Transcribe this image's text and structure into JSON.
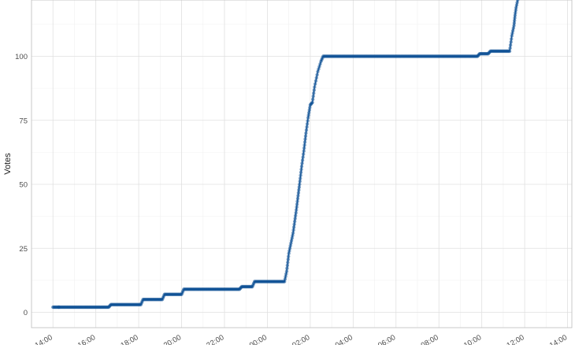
{
  "chart_data": {
    "type": "line",
    "title": "",
    "xlabel": "",
    "ylabel": "Votes",
    "x_tick_labels": [
      "14:00",
      "16:00",
      "18:00",
      "20:00",
      "22:00",
      "00:00",
      "02:00",
      "04:00",
      "06:00",
      "08:00",
      "10:00",
      "12:00",
      "14:00"
    ],
    "y_ticks": [
      0,
      25,
      50,
      75,
      100
    ],
    "ylim": [
      -6,
      122
    ],
    "x_unit": "hours since first tick (14:00 day 1)",
    "xlim": [
      -1.0,
      24.2
    ],
    "grid": true,
    "series": [
      {
        "color": "#0b4f94",
        "points": [
          [
            0.0,
            2
          ],
          [
            0.25,
            2
          ],
          [
            0.3,
            2
          ],
          [
            2.6,
            2
          ],
          [
            2.7,
            3
          ],
          [
            4.1,
            3
          ],
          [
            4.2,
            5
          ],
          [
            5.1,
            5
          ],
          [
            5.2,
            7
          ],
          [
            6.0,
            7
          ],
          [
            6.1,
            9
          ],
          [
            8.7,
            9
          ],
          [
            8.8,
            10
          ],
          [
            9.3,
            10
          ],
          [
            9.4,
            12
          ],
          [
            10.8,
            12
          ],
          [
            10.9,
            16
          ],
          [
            11.0,
            23
          ],
          [
            11.1,
            27
          ],
          [
            11.2,
            31
          ],
          [
            11.35,
            40
          ],
          [
            11.5,
            50
          ],
          [
            11.6,
            57
          ],
          [
            11.7,
            63
          ],
          [
            11.8,
            70
          ],
          [
            11.9,
            76
          ],
          [
            12.0,
            81
          ],
          [
            12.1,
            82
          ],
          [
            12.2,
            88
          ],
          [
            12.35,
            94
          ],
          [
            12.5,
            98
          ],
          [
            12.6,
            100
          ],
          [
            19.8,
            100
          ],
          [
            19.9,
            101
          ],
          [
            20.3,
            101
          ],
          [
            20.4,
            102
          ],
          [
            21.3,
            102
          ],
          [
            21.4,
            108
          ],
          [
            21.5,
            112
          ],
          [
            21.55,
            116
          ],
          [
            21.6,
            119
          ],
          [
            21.7,
            123
          ]
        ]
      }
    ]
  }
}
